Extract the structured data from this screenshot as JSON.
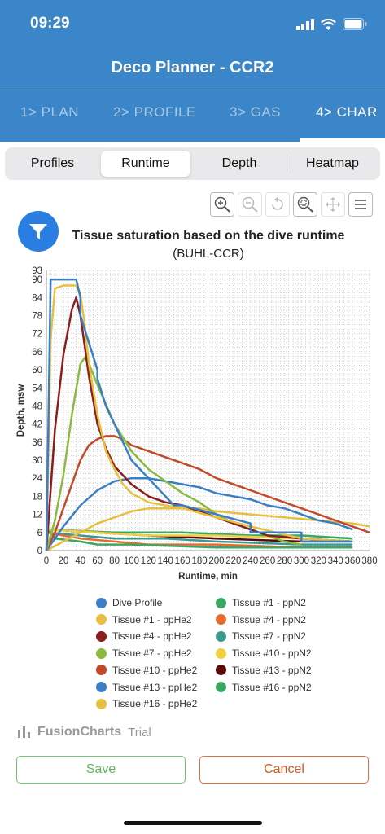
{
  "status": {
    "time": "09:29"
  },
  "header": {
    "title": "Deco Planner - CCR2"
  },
  "tabs": [
    {
      "label": "1> PLAN"
    },
    {
      "label": "2> PROFILE"
    },
    {
      "label": "3> GAS"
    },
    {
      "label": "4> CHAR"
    }
  ],
  "segments": [
    {
      "label": "Profiles"
    },
    {
      "label": "Runtime"
    },
    {
      "label": "Depth"
    },
    {
      "label": "Heatmap"
    }
  ],
  "toolbar": {
    "icons": [
      "zoom-in-icon",
      "zoom-out-icon",
      "reset-zoom-icon",
      "selection-zoom-icon",
      "pan-icon",
      "menu-icon"
    ]
  },
  "chart_title": "Tissue saturation based on the dive runtime",
  "chart_subtitle": "(BUHL-CCR)",
  "colors": {
    "header": "#3a86c8",
    "save": "#5cb85c",
    "cancel": "#d9531e",
    "filter": "#2a7de1"
  },
  "chart_data": {
    "type": "line",
    "title": "Tissue saturation based on the dive runtime",
    "subtitle": "(BUHL-CCR)",
    "xlabel": "Runtime, min",
    "ylabel": "Depth, msw",
    "xlim": [
      0,
      380
    ],
    "ylim": [
      0,
      93
    ],
    "x_ticks": [
      0,
      20,
      40,
      60,
      80,
      100,
      120,
      140,
      160,
      180,
      200,
      220,
      240,
      260,
      280,
      300,
      320,
      340,
      360,
      380
    ],
    "y_ticks": [
      0,
      6,
      12,
      18,
      24,
      30,
      36,
      42,
      48,
      54,
      60,
      66,
      72,
      78,
      84,
      90,
      93
    ],
    "grid": true,
    "legend_position": "bottom",
    "series": [
      {
        "name": "Dive Profile",
        "color": "#3a7fc4",
        "x": [
          0,
          5,
          35,
          40,
          40,
          60,
          60,
          70,
          80,
          90,
          100,
          110,
          120,
          130,
          140,
          150,
          160,
          200,
          200,
          240,
          240,
          300,
          300,
          360
        ],
        "y": [
          0,
          90,
          90,
          84,
          78,
          60,
          57,
          48,
          42,
          36,
          30,
          27,
          24,
          21,
          18,
          15,
          15,
          12,
          12,
          9,
          6,
          6,
          3,
          3
        ]
      },
      {
        "name": "Tissue #1 - ppHe2",
        "color": "#e8c040",
        "x": [
          0,
          5,
          10,
          20,
          30,
          35,
          40,
          45,
          50,
          60,
          70,
          80,
          90,
          100,
          120,
          140,
          160,
          200,
          240,
          300,
          360
        ],
        "y": [
          0,
          70,
          87,
          88,
          88,
          88,
          85,
          75,
          62,
          45,
          33,
          27,
          22,
          19,
          16,
          15,
          14,
          11,
          8,
          4,
          3
        ]
      },
      {
        "name": "Tissue #4 - ppHe2",
        "color": "#8b1e1e",
        "x": [
          0,
          5,
          10,
          20,
          30,
          35,
          40,
          45,
          50,
          60,
          70,
          80,
          90,
          100,
          120,
          140,
          160,
          180,
          200,
          220,
          240,
          260,
          300,
          360
        ],
        "y": [
          0,
          20,
          40,
          65,
          80,
          84,
          78,
          68,
          58,
          42,
          34,
          28,
          25,
          22,
          18,
          16,
          15,
          13,
          11,
          9,
          7,
          5,
          4,
          3
        ]
      },
      {
        "name": "Tissue #7 - ppHe2",
        "color": "#8cba40",
        "x": [
          0,
          10,
          20,
          30,
          40,
          45,
          50,
          60,
          80,
          100,
          120,
          140,
          160,
          180,
          200,
          220,
          240,
          260,
          280,
          300
        ],
        "y": [
          0,
          10,
          25,
          45,
          62,
          64,
          62,
          55,
          42,
          33,
          27,
          23,
          19,
          16,
          12,
          9,
          7,
          5,
          3,
          2
        ]
      },
      {
        "name": "Tissue #10 - ppHe2",
        "color": "#c04a2a",
        "x": [
          0,
          10,
          20,
          30,
          40,
          50,
          60,
          70,
          80,
          90,
          100,
          120,
          140,
          160,
          180,
          200,
          220,
          240,
          260,
          280,
          300,
          320,
          340,
          360,
          380
        ],
        "y": [
          0,
          6,
          14,
          22,
          30,
          35,
          37,
          38,
          38,
          37,
          35,
          33,
          31,
          29,
          27,
          24,
          22,
          20,
          18,
          16,
          14,
          12,
          10,
          8,
          6
        ]
      },
      {
        "name": "Tissue #13 - ppHe2",
        "color": "#3a7fc4",
        "x": [
          0,
          20,
          40,
          60,
          80,
          100,
          120,
          140,
          160,
          180,
          200,
          220,
          240,
          260,
          280,
          300,
          320,
          340,
          360
        ],
        "y": [
          0,
          8,
          15,
          20,
          23,
          24,
          24,
          23,
          22,
          21,
          19,
          18,
          17,
          15,
          14,
          12,
          10,
          9,
          7
        ]
      },
      {
        "name": "Tissue #16 - ppHe2",
        "color": "#e8c040",
        "x": [
          0,
          20,
          40,
          60,
          80,
          100,
          120,
          140,
          160,
          180,
          200,
          240,
          280,
          320,
          360,
          380
        ],
        "y": [
          0,
          3,
          6,
          9,
          11,
          13,
          14,
          14,
          14,
          14,
          13,
          12,
          11,
          10,
          9,
          8
        ]
      },
      {
        "name": "Tissue #1 - ppN2",
        "color": "#3aa860",
        "x": [
          0,
          5,
          10,
          40,
          60,
          100,
          200,
          300,
          360
        ],
        "y": [
          7,
          6,
          4,
          3,
          2,
          2,
          1,
          1,
          1
        ]
      },
      {
        "name": "Tissue #4 - ppN2",
        "color": "#e86a30",
        "x": [
          0,
          20,
          40,
          80,
          120,
          200,
          300,
          360
        ],
        "y": [
          6,
          5,
          4,
          3,
          2,
          2,
          1,
          1
        ]
      },
      {
        "name": "Tissue #7 - ppN2",
        "color": "#3a9a90",
        "x": [
          0,
          40,
          80,
          140,
          200,
          300,
          360
        ],
        "y": [
          6,
          5,
          4,
          4,
          3,
          2,
          2
        ]
      },
      {
        "name": "Tissue #10 - ppN2",
        "color": "#f0d040",
        "x": [
          0,
          60,
          120,
          200,
          300,
          360
        ],
        "y": [
          7,
          6,
          5,
          5,
          4,
          3
        ]
      },
      {
        "name": "Tissue #13 - ppN2",
        "color": "#5a0a0a",
        "x": [
          0,
          60,
          120,
          200,
          300,
          360
        ],
        "y": [
          7,
          6,
          5,
          4,
          3,
          3
        ]
      },
      {
        "name": "Tissue #16 - ppN2",
        "color": "#3aa860",
        "x": [
          0,
          80,
          160,
          240,
          300,
          360
        ],
        "y": [
          7,
          6,
          6,
          5,
          5,
          4
        ]
      }
    ]
  },
  "branding": {
    "fusion": "FusionCharts",
    "trial": "Trial"
  },
  "buttons": {
    "save": "Save",
    "cancel": "Cancel"
  }
}
